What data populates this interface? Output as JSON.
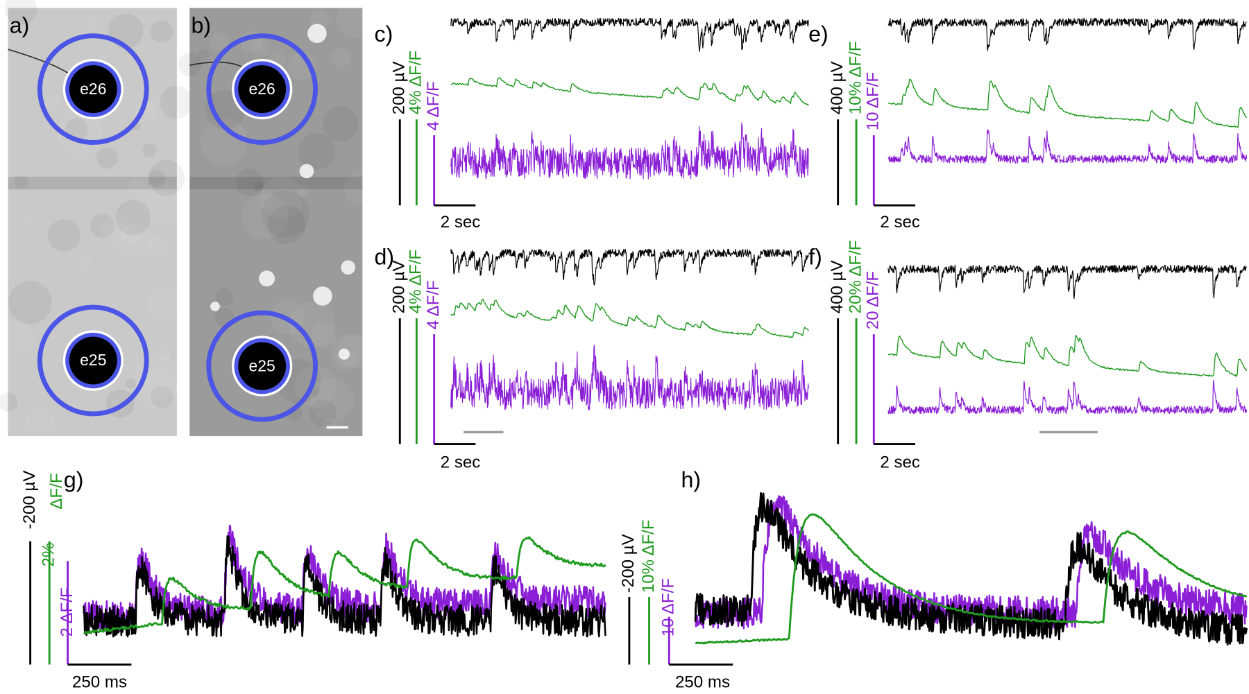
{
  "panels": [
    {
      "label": "a)",
      "electrodes": [
        "e26",
        "e25"
      ]
    },
    {
      "label": "b)",
      "electrodes": [
        "e26",
        "e25"
      ]
    },
    {
      "label": "c)",
      "scale": {
        "black": "200 µV",
        "green": "4% ΔF/F",
        "purple": "4 ΔF/F",
        "time": "2 sec"
      }
    },
    {
      "label": "d)",
      "scale": {
        "black": "200 µV",
        "green": "4% ΔF/F",
        "purple": "4 ΔF/F",
        "time": "2 sec"
      }
    },
    {
      "label": "e)",
      "scale": {
        "black": "400 µV",
        "green": "10% ΔF/F",
        "purple": "10 ΔF/F",
        "time": "2 sec"
      }
    },
    {
      "label": "f)",
      "scale": {
        "black": "400 µV",
        "green": "20% ΔF/F",
        "purple": "20 ΔF/F",
        "time": "2 sec"
      }
    },
    {
      "label": "g)",
      "scale": {
        "black": "-200 µV",
        "green": "2%",
        "green_unit": "ΔF/F",
        "purple": "2 ΔF/F",
        "time": "250 ms"
      }
    },
    {
      "label": "h)",
      "scale": {
        "black": "-200 µV",
        "green": "10% ΔF/F",
        "purple": "10 ΔF/F",
        "time": "250 ms"
      }
    }
  ]
}
